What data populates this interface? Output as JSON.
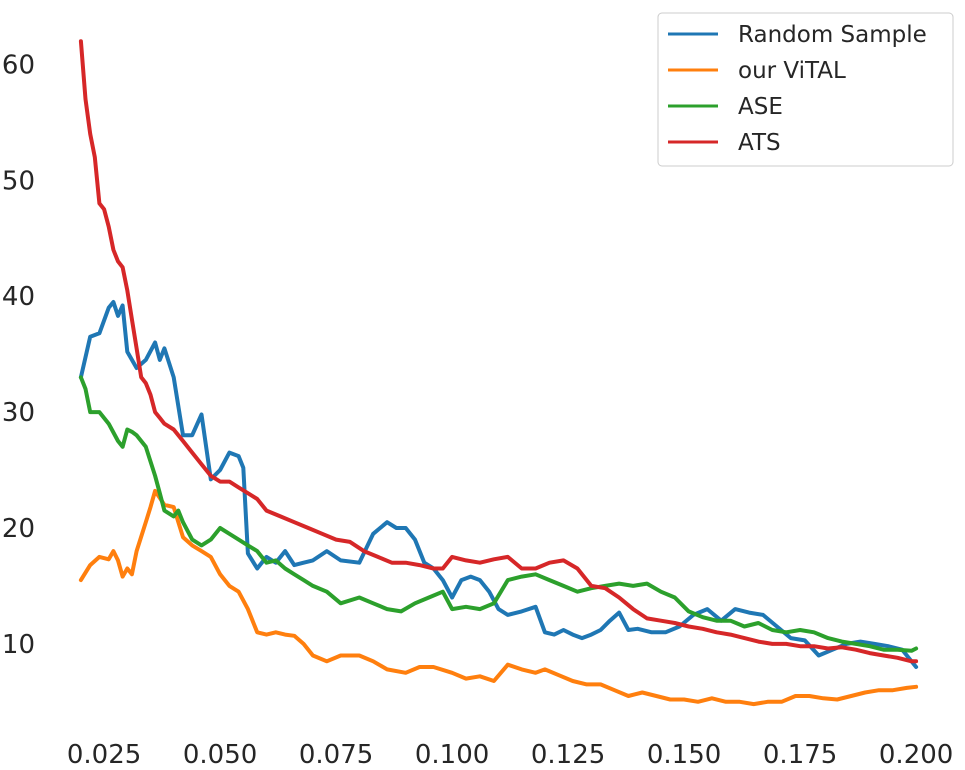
{
  "chart_data": {
    "type": "line",
    "title": "",
    "xlabel": "",
    "ylabel": "",
    "xlim": [
      0.0155,
      0.2045
    ],
    "ylim": [
      3.0,
      64.0
    ],
    "x_ticks": [
      0.025,
      0.05,
      0.075,
      0.1,
      0.125,
      0.15,
      0.175,
      0.2
    ],
    "x_tick_labels": [
      "0.025",
      "0.050",
      "0.075",
      "0.100",
      "0.125",
      "0.150",
      "0.175",
      "0.200"
    ],
    "y_ticks": [
      10,
      20,
      30,
      40,
      50,
      60
    ],
    "y_tick_labels": [
      "10",
      "20",
      "30",
      "40",
      "50",
      "60"
    ],
    "grid": false,
    "legend_position": "top-right",
    "colors": {
      "random_sample": "#1f77b4",
      "our_vital": "#ff7f0e",
      "ase": "#2ca02c",
      "ats": "#d62728",
      "background": "#ffffff"
    },
    "series": [
      {
        "name": "Random Sample",
        "color": "#1f77b4",
        "x": [
          0.02,
          0.022,
          0.024,
          0.026,
          0.027,
          0.028,
          0.029,
          0.03,
          0.032,
          0.034,
          0.036,
          0.037,
          0.038,
          0.04,
          0.042,
          0.044,
          0.046,
          0.048,
          0.05,
          0.052,
          0.054,
          0.055,
          0.056,
          0.058,
          0.06,
          0.062,
          0.064,
          0.066,
          0.068,
          0.07,
          0.073,
          0.076,
          0.08,
          0.083,
          0.086,
          0.088,
          0.09,
          0.092,
          0.094,
          0.096,
          0.098,
          0.1,
          0.102,
          0.104,
          0.106,
          0.108,
          0.11,
          0.112,
          0.115,
          0.118,
          0.12,
          0.122,
          0.124,
          0.126,
          0.128,
          0.13,
          0.132,
          0.134,
          0.136,
          0.138,
          0.14,
          0.143,
          0.146,
          0.149,
          0.152,
          0.155,
          0.158,
          0.161,
          0.164,
          0.167,
          0.17,
          0.173,
          0.176,
          0.179,
          0.182,
          0.185,
          0.188,
          0.191,
          0.194,
          0.197,
          0.2
        ],
        "values": [
          33.0,
          36.5,
          36.8,
          39.0,
          39.5,
          38.3,
          39.2,
          35.2,
          33.8,
          34.5,
          36.0,
          34.5,
          35.5,
          33.0,
          28.0,
          28.0,
          29.8,
          24.2,
          25.0,
          26.5,
          26.2,
          25.2,
          17.8,
          16.5,
          17.5,
          17.0,
          18.0,
          16.8,
          17.0,
          17.2,
          18.0,
          17.2,
          17.0,
          19.5,
          20.5,
          20.0,
          20.0,
          19.0,
          17.0,
          16.5,
          15.5,
          14.0,
          15.5,
          15.8,
          15.5,
          14.5,
          13.0,
          12.5,
          12.8,
          13.2,
          11.0,
          10.8,
          11.2,
          10.8,
          10.5,
          10.8,
          11.2,
          12.0,
          12.7,
          11.2,
          11.3,
          11.0,
          11.0,
          11.5,
          12.5,
          13.0,
          12.0,
          13.0,
          12.7,
          12.5,
          11.5,
          10.5,
          10.3,
          9.0,
          9.5,
          10.0,
          10.2,
          10.0,
          9.8,
          9.5,
          8.0
        ]
      },
      {
        "name": "our ViTAL",
        "color": "#ff7f0e",
        "x": [
          0.02,
          0.022,
          0.024,
          0.026,
          0.027,
          0.028,
          0.029,
          0.03,
          0.031,
          0.032,
          0.034,
          0.035,
          0.036,
          0.038,
          0.04,
          0.042,
          0.044,
          0.046,
          0.048,
          0.05,
          0.052,
          0.054,
          0.056,
          0.058,
          0.06,
          0.062,
          0.064,
          0.066,
          0.068,
          0.07,
          0.073,
          0.076,
          0.08,
          0.083,
          0.086,
          0.09,
          0.093,
          0.096,
          0.1,
          0.103,
          0.106,
          0.109,
          0.112,
          0.115,
          0.118,
          0.12,
          0.123,
          0.126,
          0.129,
          0.132,
          0.135,
          0.138,
          0.141,
          0.144,
          0.147,
          0.15,
          0.153,
          0.156,
          0.159,
          0.162,
          0.165,
          0.168,
          0.171,
          0.174,
          0.177,
          0.18,
          0.183,
          0.186,
          0.189,
          0.192,
          0.195,
          0.198,
          0.2
        ],
        "values": [
          15.5,
          16.8,
          17.5,
          17.3,
          18.0,
          17.2,
          15.8,
          16.5,
          16.0,
          18.0,
          20.5,
          21.8,
          23.2,
          22.0,
          21.8,
          19.2,
          18.5,
          18.0,
          17.5,
          16.0,
          15.0,
          14.5,
          13.0,
          11.0,
          10.8,
          11.0,
          10.8,
          10.7,
          10.0,
          9.0,
          8.5,
          9.0,
          9.0,
          8.5,
          7.8,
          7.5,
          8.0,
          8.0,
          7.5,
          7.0,
          7.2,
          6.8,
          8.2,
          7.8,
          7.5,
          7.8,
          7.3,
          6.8,
          6.5,
          6.5,
          6.0,
          5.5,
          5.8,
          5.5,
          5.2,
          5.2,
          5.0,
          5.3,
          5.0,
          5.0,
          4.8,
          5.0,
          5.0,
          5.5,
          5.5,
          5.3,
          5.2,
          5.5,
          5.8,
          6.0,
          6.0,
          6.2,
          6.3
        ]
      },
      {
        "name": "ASE",
        "color": "#2ca02c",
        "x": [
          0.02,
          0.021,
          0.022,
          0.024,
          0.026,
          0.028,
          0.029,
          0.03,
          0.031,
          0.032,
          0.034,
          0.036,
          0.037,
          0.038,
          0.04,
          0.041,
          0.042,
          0.044,
          0.046,
          0.048,
          0.05,
          0.052,
          0.054,
          0.056,
          0.058,
          0.06,
          0.062,
          0.064,
          0.066,
          0.068,
          0.07,
          0.073,
          0.076,
          0.08,
          0.083,
          0.086,
          0.089,
          0.092,
          0.095,
          0.098,
          0.1,
          0.103,
          0.106,
          0.109,
          0.112,
          0.115,
          0.118,
          0.121,
          0.124,
          0.127,
          0.13,
          0.133,
          0.136,
          0.139,
          0.142,
          0.145,
          0.148,
          0.151,
          0.154,
          0.157,
          0.16,
          0.163,
          0.166,
          0.169,
          0.172,
          0.175,
          0.178,
          0.181,
          0.184,
          0.187,
          0.19,
          0.193,
          0.196,
          0.199,
          0.2
        ],
        "values": [
          33.0,
          32.0,
          30.0,
          30.0,
          29.0,
          27.5,
          27.0,
          28.5,
          28.3,
          28.0,
          27.0,
          24.5,
          23.0,
          21.5,
          21.0,
          21.5,
          20.5,
          19.0,
          18.5,
          19.0,
          20.0,
          19.5,
          19.0,
          18.5,
          18.0,
          17.0,
          17.2,
          16.5,
          16.0,
          15.5,
          15.0,
          14.5,
          13.5,
          14.0,
          13.5,
          13.0,
          12.8,
          13.5,
          14.0,
          14.5,
          13.0,
          13.2,
          13.0,
          13.5,
          15.5,
          15.8,
          16.0,
          15.5,
          15.0,
          14.5,
          14.8,
          15.0,
          15.2,
          15.0,
          15.2,
          14.5,
          14.0,
          12.8,
          12.3,
          12.0,
          12.0,
          11.5,
          11.8,
          11.2,
          11.0,
          11.2,
          11.0,
          10.5,
          10.2,
          10.0,
          9.8,
          9.5,
          9.5,
          9.4,
          9.6
        ]
      },
      {
        "name": "ATS",
        "color": "#d62728",
        "x": [
          0.02,
          0.021,
          0.022,
          0.023,
          0.024,
          0.025,
          0.026,
          0.027,
          0.028,
          0.029,
          0.03,
          0.031,
          0.032,
          0.033,
          0.034,
          0.035,
          0.036,
          0.037,
          0.038,
          0.04,
          0.042,
          0.044,
          0.046,
          0.048,
          0.05,
          0.052,
          0.054,
          0.056,
          0.058,
          0.06,
          0.063,
          0.066,
          0.069,
          0.072,
          0.075,
          0.078,
          0.081,
          0.084,
          0.087,
          0.09,
          0.093,
          0.096,
          0.098,
          0.1,
          0.103,
          0.106,
          0.109,
          0.112,
          0.115,
          0.118,
          0.121,
          0.124,
          0.127,
          0.13,
          0.133,
          0.136,
          0.139,
          0.142,
          0.145,
          0.148,
          0.151,
          0.154,
          0.157,
          0.16,
          0.163,
          0.166,
          0.169,
          0.172,
          0.175,
          0.178,
          0.181,
          0.184,
          0.187,
          0.19,
          0.193,
          0.196,
          0.199,
          0.2
        ],
        "values": [
          62.0,
          57.0,
          54.0,
          52.0,
          48.0,
          47.5,
          46.0,
          44.0,
          43.0,
          42.5,
          40.5,
          38.0,
          35.5,
          33.0,
          32.5,
          31.5,
          30.0,
          29.5,
          29.0,
          28.5,
          27.5,
          26.5,
          25.5,
          24.5,
          24.0,
          24.0,
          23.5,
          23.0,
          22.5,
          21.5,
          21.0,
          20.5,
          20.0,
          19.5,
          19.0,
          18.8,
          18.0,
          17.5,
          17.0,
          17.0,
          16.8,
          16.5,
          16.5,
          17.5,
          17.2,
          17.0,
          17.3,
          17.5,
          16.5,
          16.5,
          17.0,
          17.2,
          16.5,
          15.0,
          14.8,
          14.0,
          13.0,
          12.2,
          12.0,
          11.8,
          11.5,
          11.3,
          11.0,
          10.8,
          10.5,
          10.2,
          10.0,
          10.0,
          9.8,
          9.8,
          9.6,
          9.7,
          9.5,
          9.2,
          9.0,
          8.8,
          8.5,
          8.5
        ]
      }
    ]
  }
}
